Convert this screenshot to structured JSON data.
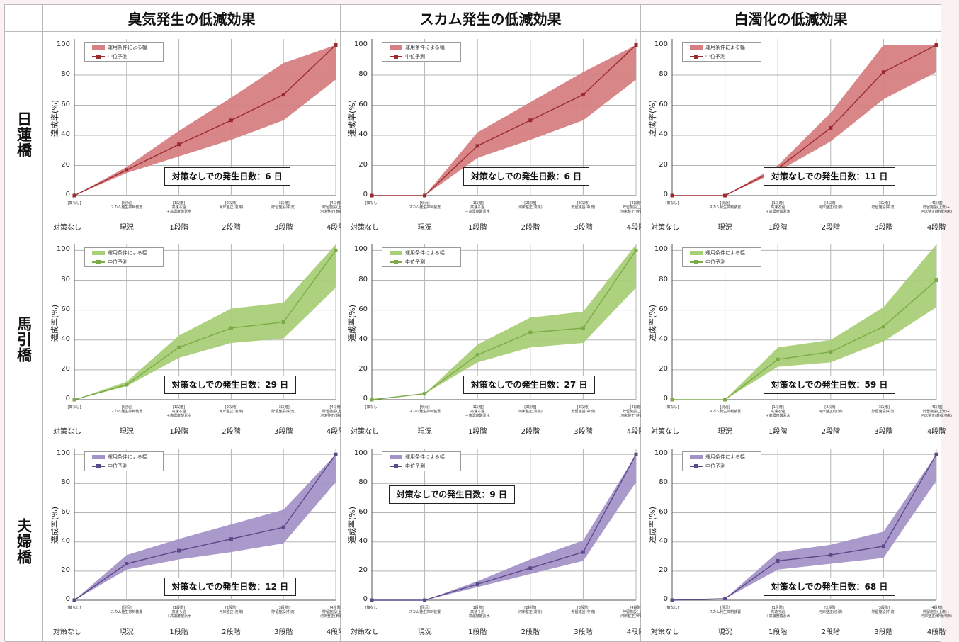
{
  "column_headers": [
    "臭気発生の低減効果",
    "スカム発生の低減効果",
    "白濁化の低減効果"
  ],
  "row_headers": [
    "日蓮橋",
    "馬引橋",
    "夫婦橋"
  ],
  "legend": {
    "range": "運用条件による幅",
    "median": "中位予測"
  },
  "ylabel": "達成率(%)",
  "yticks": [
    "0",
    "20",
    "40",
    "60",
    "80",
    "100"
  ],
  "categories": [
    "対策なし",
    "現況",
    "1段階",
    "2段階",
    "3段階",
    "4段階"
  ],
  "category_small": [
    "[策なし]",
    "[現況]\nスカム発生抑制装置",
    "[1段階]\n高速ろ過\n＋高濃度酸素水",
    "[2段階]\n河床整正(浚渫)",
    "[3段階]\n貯留施設(中流)",
    "[4段階]\n貯留施設(上流)+\n河床整正(幹線河床)"
  ],
  "colors": {
    "red_fill": "#d77f83",
    "red_line": "#9b2a2e",
    "green_fill": "#a9cf78",
    "green_line": "#7aab45",
    "purple_fill": "#a593c8",
    "purple_line": "#5b4a8a"
  },
  "chart_data": [
    {
      "type": "area",
      "row": "日蓮橋",
      "column": "臭気発生の低減効果",
      "color": "red",
      "x": [
        "対策なし",
        "現況",
        "1段階",
        "2段階",
        "3段階",
        "4段階"
      ],
      "median": [
        0,
        17,
        34,
        50,
        67,
        100
      ],
      "low": [
        0,
        15,
        26,
        37,
        50,
        77
      ],
      "high": [
        0,
        19,
        43,
        65,
        88,
        100
      ],
      "ylim": [
        0,
        100
      ],
      "note": "対策なしでの発生日数：6 日"
    },
    {
      "type": "area",
      "row": "日蓮橋",
      "column": "スカム発生の低減効果",
      "color": "red",
      "x": [
        "対策なし",
        "現況",
        "1段階",
        "2段階",
        "3段階",
        "4段階"
      ],
      "median": [
        0,
        0,
        33,
        50,
        67,
        100
      ],
      "low": [
        0,
        0,
        25,
        37,
        50,
        77
      ],
      "high": [
        0,
        0,
        42,
        62,
        82,
        100
      ],
      "ylim": [
        0,
        100
      ],
      "note": "対策なしでの発生日数：6 日"
    },
    {
      "type": "area",
      "row": "日蓮橋",
      "column": "白濁化の低減効果",
      "color": "red",
      "x": [
        "対策なし",
        "現況",
        "1段階",
        "2段階",
        "3段階",
        "4段階"
      ],
      "median": [
        0,
        0,
        18,
        45,
        82,
        100
      ],
      "low": [
        0,
        0,
        16,
        36,
        64,
        82
      ],
      "high": [
        0,
        0,
        20,
        55,
        100,
        100
      ],
      "ylim": [
        0,
        100
      ],
      "note": "対策なしでの発生日数：11 日"
    },
    {
      "type": "area",
      "row": "馬引橋",
      "column": "臭気発生の低減効果",
      "color": "green",
      "x": [
        "対策なし",
        "現況",
        "1段階",
        "2段階",
        "3段階",
        "4段階"
      ],
      "median": [
        0,
        10,
        35,
        48,
        52,
        100
      ],
      "low": [
        0,
        9,
        28,
        38,
        41,
        75
      ],
      "high": [
        0,
        12,
        43,
        61,
        65,
        110
      ],
      "ylim": [
        0,
        100
      ],
      "note": "対策なしでの発生日数：29 日"
    },
    {
      "type": "area",
      "row": "馬引橋",
      "column": "スカム発生の低減効果",
      "color": "green",
      "x": [
        "対策なし",
        "現況",
        "1段階",
        "2段階",
        "3段階",
        "4段階"
      ],
      "median": [
        0,
        4,
        30,
        45,
        48,
        100
      ],
      "low": [
        0,
        4,
        25,
        35,
        38,
        75
      ],
      "high": [
        0,
        4,
        37,
        55,
        59,
        110
      ],
      "ylim": [
        0,
        100
      ],
      "note": "対策なしでの発生日数：27 日"
    },
    {
      "type": "area",
      "row": "馬引橋",
      "column": "白濁化の低減効果",
      "color": "green",
      "x": [
        "対策なし",
        "現況",
        "1段階",
        "2段階",
        "3段階",
        "4段階"
      ],
      "median": [
        0,
        0,
        27,
        32,
        49,
        80
      ],
      "low": [
        0,
        0,
        22,
        25,
        39,
        62
      ],
      "high": [
        0,
        0,
        35,
        40,
        62,
        105
      ],
      "ylim": [
        0,
        100
      ],
      "note": "対策なしでの発生日数：59 日"
    },
    {
      "type": "area",
      "row": "夫婦橋",
      "column": "臭気発生の低減効果",
      "color": "purple",
      "x": [
        "対策なし",
        "現況",
        "1段階",
        "2段階",
        "3段階",
        "4段階"
      ],
      "median": [
        0,
        25,
        34,
        42,
        50,
        100
      ],
      "low": [
        0,
        21,
        28,
        33,
        39,
        81
      ],
      "high": [
        0,
        31,
        42,
        52,
        62,
        100
      ],
      "ylim": [
        0,
        100
      ],
      "note": "対策なしでの発生日数：12 日"
    },
    {
      "type": "area",
      "row": "夫婦橋",
      "column": "スカム発生の低減効果",
      "color": "purple",
      "x": [
        "対策なし",
        "現況",
        "1段階",
        "2段階",
        "3段階",
        "4段階"
      ],
      "median": [
        0,
        0,
        11,
        22,
        33,
        100
      ],
      "low": [
        0,
        0,
        9,
        18,
        27,
        81
      ],
      "high": [
        0,
        0,
        13,
        28,
        41,
        100
      ],
      "ylim": [
        0,
        100
      ],
      "note": "対策なしでの発生日数：9 日"
    },
    {
      "type": "area",
      "row": "夫婦橋",
      "column": "白濁化の低減効果",
      "color": "purple",
      "x": [
        "対策なし",
        "現況",
        "1段階",
        "2段階",
        "3段階",
        "4段階"
      ],
      "median": [
        0,
        1,
        27,
        31,
        37,
        100
      ],
      "low": [
        0,
        1,
        21,
        25,
        29,
        82
      ],
      "high": [
        0,
        1,
        33,
        38,
        47,
        100
      ],
      "ylim": [
        0,
        100
      ],
      "note": "対策なしでの発生日数：68 日"
    }
  ]
}
